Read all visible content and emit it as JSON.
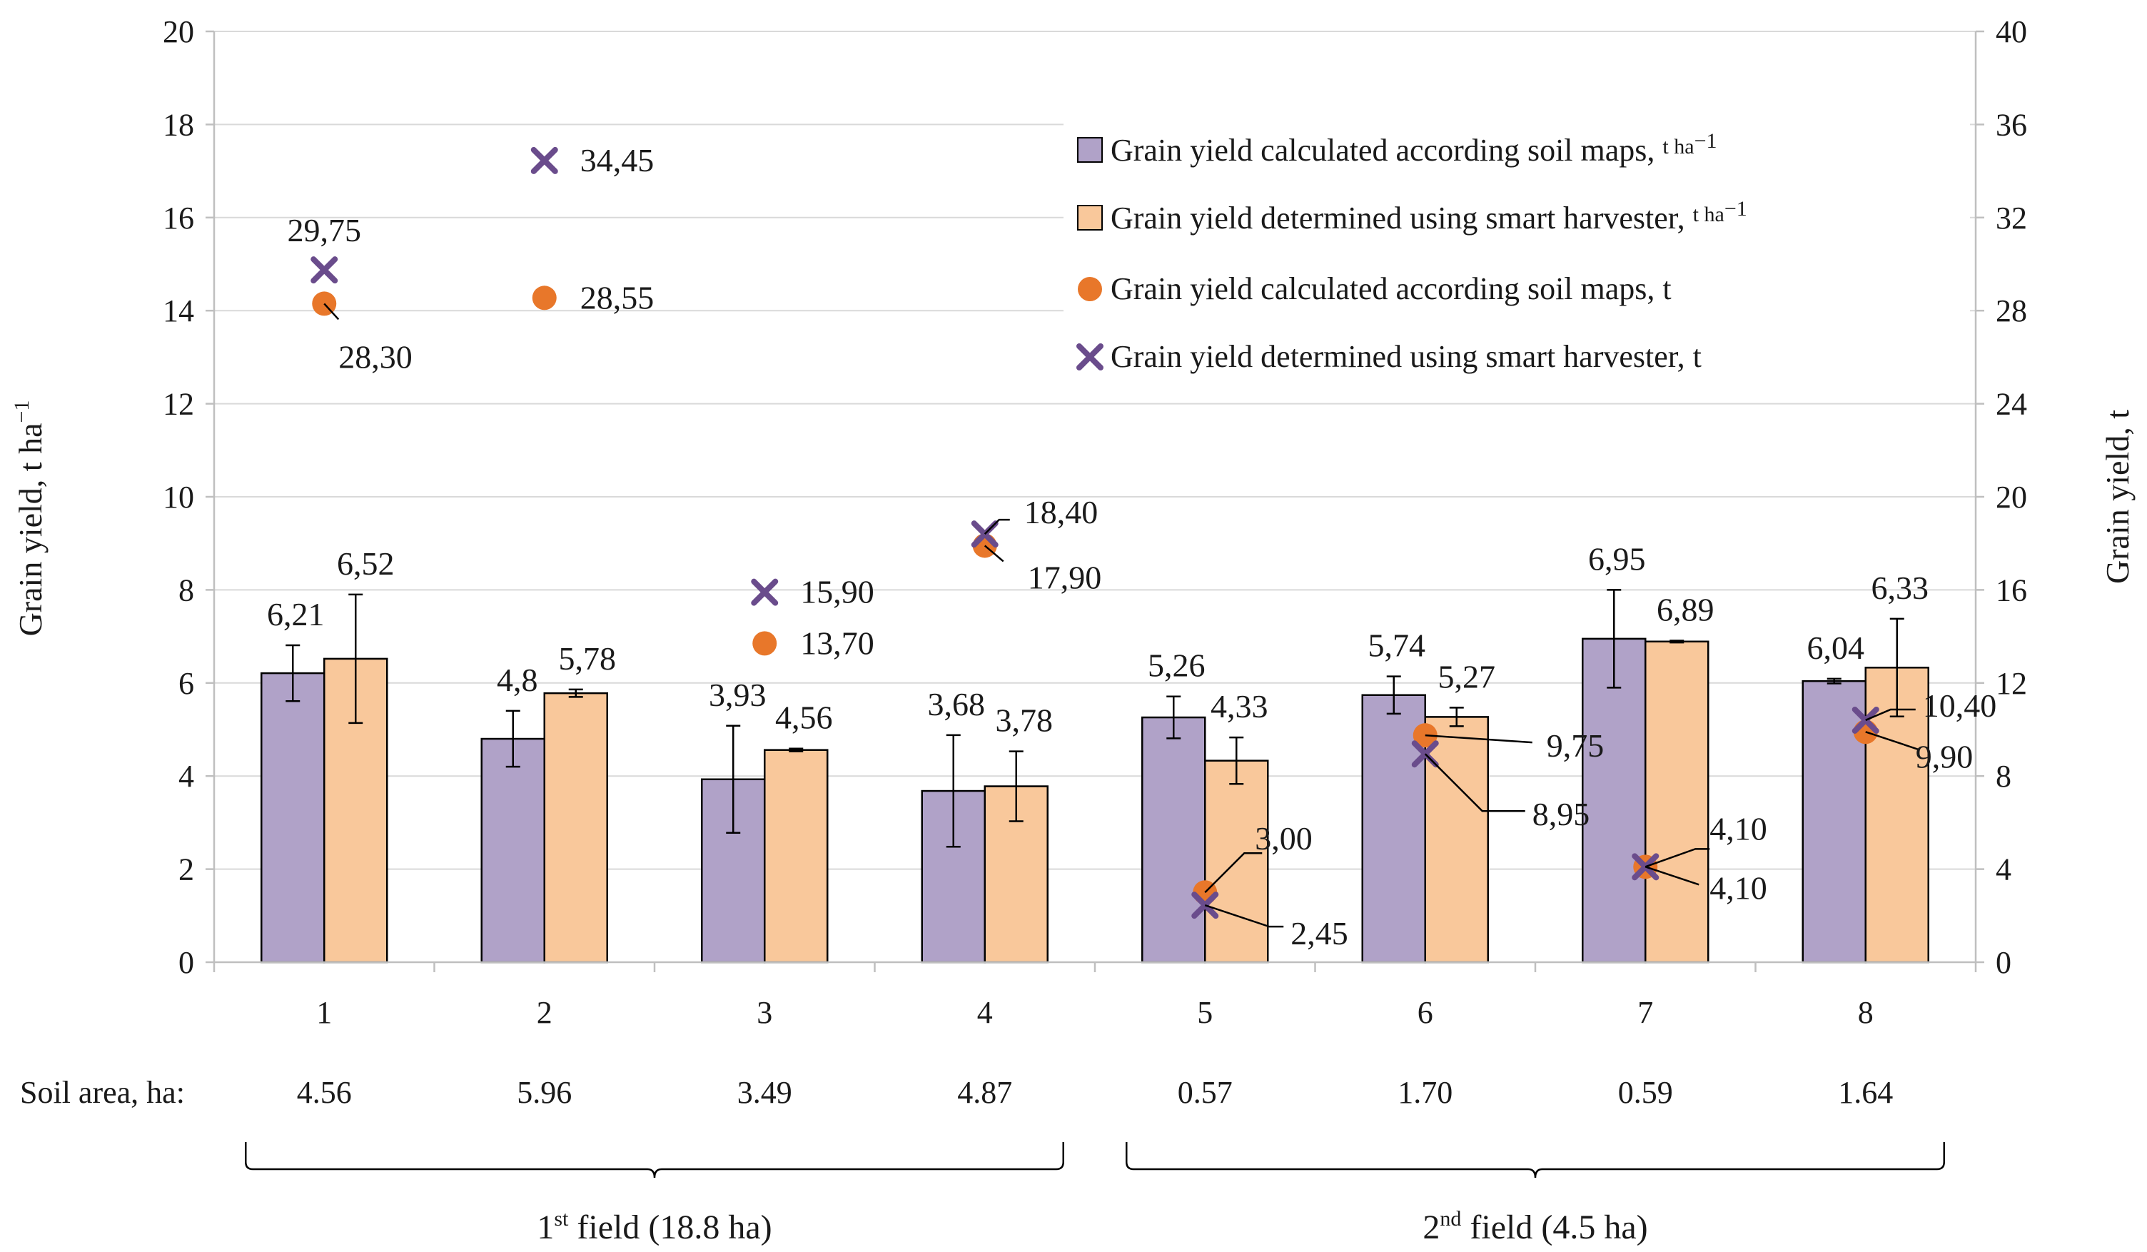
{
  "chart_data": {
    "type": "bar",
    "categories": [
      "1",
      "2",
      "3",
      "4",
      "5",
      "6",
      "7",
      "8"
    ],
    "ylabel_left": "Grain yield, t ha",
    "ylabel_left_sup": "−1",
    "ylabel_right": "Grain yield, t",
    "ylim_left": [
      0,
      20
    ],
    "yticks_left": [
      0,
      2,
      4,
      6,
      8,
      10,
      12,
      14,
      16,
      18,
      20
    ],
    "ylim_right": [
      0,
      40
    ],
    "yticks_right": [
      0,
      4,
      8,
      12,
      16,
      20,
      24,
      28,
      32,
      36,
      40
    ],
    "bar_series": [
      {
        "name": "Grain yield calculated according soil maps,",
        "unit": "t ha",
        "unit_sup": "−1",
        "color": "#b0a2c8",
        "values": [
          6.21,
          4.8,
          3.93,
          3.68,
          5.26,
          5.74,
          6.95,
          6.04
        ],
        "labels": [
          "6,21",
          "4,8",
          "3,93",
          "3,68",
          "5,26",
          "5,74",
          "6,95",
          "6,04"
        ],
        "errors": [
          0.6,
          0.6,
          1.15,
          1.2,
          0.45,
          0.4,
          1.05,
          0.05
        ]
      },
      {
        "name": "Grain yield determined using smart harvester,",
        "unit": "t ha",
        "unit_sup": "−1",
        "color": "#f9c89b",
        "values": [
          6.52,
          5.78,
          4.56,
          3.78,
          4.33,
          5.27,
          6.89,
          6.33
        ],
        "labels": [
          "6,52",
          "5,78",
          "4,56",
          "3,78",
          "4,33",
          "5,27",
          "6,89",
          "6,33"
        ],
        "errors": [
          1.38,
          0.08,
          0.03,
          0.75,
          0.5,
          0.2,
          0.02,
          1.05
        ]
      }
    ],
    "point_series": [
      {
        "name": "Grain yield calculated according soil maps, t",
        "marker": "circle",
        "color": "#e8772a",
        "values": [
          28.3,
          28.55,
          13.7,
          17.9,
          3.0,
          9.75,
          4.1,
          9.9
        ],
        "labels": [
          "28,30",
          "28,55",
          "13,70",
          "17,90",
          "3,00",
          "9,75",
          "4,10",
          "9,90"
        ]
      },
      {
        "name": "Grain yield determined using smart harvester, t",
        "marker": "x",
        "color": "#6a4c8c",
        "values": [
          29.75,
          34.45,
          15.9,
          18.4,
          2.45,
          8.95,
          4.1,
          10.4
        ],
        "labels": [
          "29,75",
          "34,45",
          "15,90",
          "18,40",
          "2,45",
          "8,95",
          "4,10",
          "10,40"
        ]
      }
    ],
    "soil_area_label": "Soil area, ha:",
    "soil_areas": [
      "4.56",
      "5.96",
      "3.49",
      "4.87",
      "0.57",
      "1.70",
      "0.59",
      "1.64"
    ],
    "fields": [
      {
        "ordinal": "1",
        "sup": "st",
        "rest": " field (18.8 ha)",
        "from": 1,
        "to": 4
      },
      {
        "ordinal": "2",
        "sup": "nd",
        "rest": " field (4.5 ha)",
        "from": 5,
        "to": 8
      }
    ],
    "legend_position": "top-right"
  }
}
